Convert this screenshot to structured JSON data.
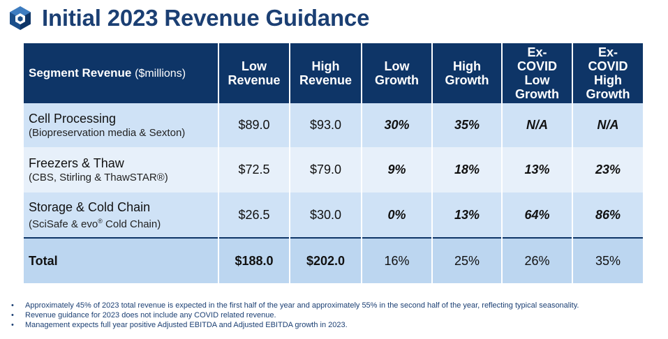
{
  "title": "Initial 2023 Revenue Guidance",
  "logo_icon": "cube-hexagon-logo-icon",
  "colors": {
    "header": "#0e3567",
    "title": "#1b3f73",
    "row_a": "#cfe2f6",
    "row_b": "#e7f0fa",
    "total": "#bcd6f0"
  },
  "table": {
    "headers": {
      "segment": "Segment Revenue",
      "segment_unit": "($millions)",
      "low_rev": [
        "Low",
        "Revenue"
      ],
      "high_rev": [
        "High",
        "Revenue"
      ],
      "low_growth": [
        "Low",
        "Growth"
      ],
      "high_growth": [
        "High",
        "Growth"
      ],
      "excovid_low": [
        "Ex-",
        "COVID",
        "Low",
        "Growth"
      ],
      "excovid_high": [
        "Ex-",
        "COVID",
        "High",
        "Growth"
      ]
    },
    "rows": [
      {
        "name": "Cell Processing",
        "sub": "(Biopreservation media & Sexton)",
        "low_rev": "$89.0",
        "high_rev": "$93.0",
        "low_growth": "30%",
        "high_growth": "35%",
        "excovid_low": "N/A",
        "excovid_high": "N/A"
      },
      {
        "name": "Freezers & Thaw",
        "sub": "(CBS, Stirling & ThawSTAR®)",
        "low_rev": "$72.5",
        "high_rev": "$79.0",
        "low_growth": "9%",
        "high_growth": "18%",
        "excovid_low": "13%",
        "excovid_high": "23%"
      },
      {
        "name": "Storage & Cold Chain",
        "sub_pre": "(SciSafe & evo",
        "sub_sup": "®",
        "sub_post": " Cold Chain)",
        "low_rev": "$26.5",
        "high_rev": "$30.0",
        "low_growth": "0%",
        "high_growth": "13%",
        "excovid_low": "64%",
        "excovid_high": "86%"
      }
    ],
    "total": {
      "name": "Total",
      "low_rev": "$188.0",
      "high_rev": "$202.0",
      "low_growth": "16%",
      "high_growth": "25%",
      "excovid_low": "26%",
      "excovid_high": "35%"
    }
  },
  "notes": [
    "Approximately 45% of 2023 total revenue is expected in the first half of the year and approximately 55% in the second half of the year, reflecting typical seasonality.",
    "Revenue guidance for 2023 does not include any COVID related revenue.",
    "Management expects full year positive Adjusted EBITDA and Adjusted EBITDA growth in 2023."
  ]
}
